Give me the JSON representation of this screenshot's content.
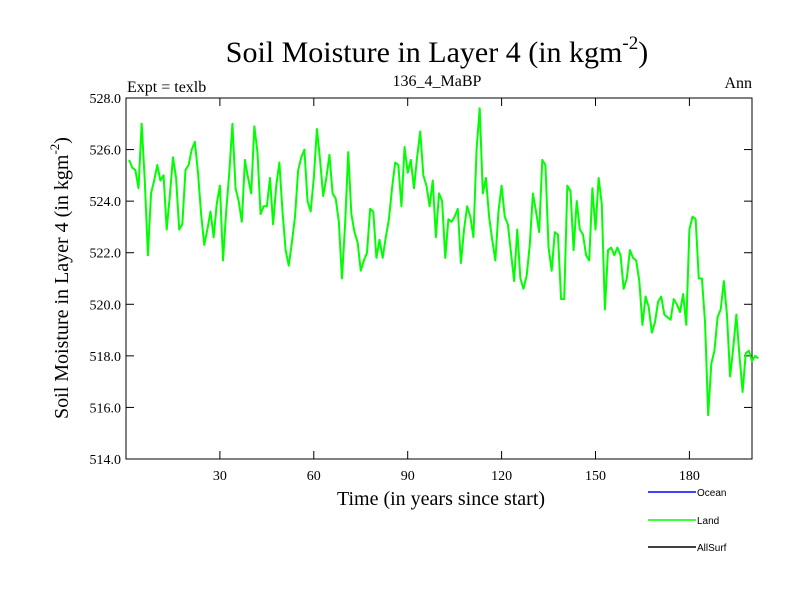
{
  "chart_data": {
    "type": "line",
    "title": "Soil Moisture in Layer 4 (in kgm",
    "title_sup": "-2",
    "title_close": ")",
    "subtitle_left": "Expt = texlb",
    "subtitle_center": "136_4_MaBP",
    "subtitle_right": "Ann",
    "xlabel": "Time (in years since start)",
    "ylabel": "Soil Moisture in Layer 4 (in kgm",
    "ylabel_sup": "-2",
    "ylabel_close": ")",
    "xlim": [
      0,
      200
    ],
    "ylim": [
      514.0,
      528.0
    ],
    "xticks": [
      30,
      60,
      90,
      120,
      150,
      180
    ],
    "xtick_labels": [
      "30",
      "60",
      "90",
      "120",
      "150",
      "180"
    ],
    "yticks": [
      514,
      516,
      518,
      520,
      522,
      524,
      526,
      528
    ],
    "ytick_labels": [
      "514.0",
      "516.0",
      "518.0",
      "520.0",
      "522.0",
      "524.0",
      "526.0",
      "528.0"
    ],
    "legend": [
      {
        "name": "Ocean",
        "color": "#0000ff"
      },
      {
        "name": "Land",
        "color": "#00ff00"
      },
      {
        "name": "AllSurf",
        "color": "#000000"
      }
    ],
    "series": [
      {
        "name": "Land",
        "color": "#00ff00",
        "x_start": 1,
        "values": [
          525.6,
          525.3,
          525.2,
          524.5,
          527.0,
          524.8,
          521.9,
          524.3,
          524.8,
          525.4,
          524.8,
          525.0,
          522.9,
          524.2,
          525.7,
          524.9,
          522.9,
          523.1,
          525.2,
          525.4,
          526.0,
          526.3,
          525.1,
          523.5,
          522.3,
          522.9,
          523.6,
          522.6,
          523.9,
          524.6,
          521.7,
          523.6,
          525.1,
          527.0,
          524.5,
          524.0,
          523.2,
          525.6,
          524.9,
          524.3,
          526.9,
          525.9,
          523.5,
          523.8,
          523.8,
          524.9,
          523.1,
          524.6,
          525.5,
          523.6,
          522.1,
          521.5,
          522.4,
          523.4,
          525.2,
          525.7,
          526.0,
          524.0,
          523.6,
          524.9,
          526.8,
          525.6,
          524.2,
          524.9,
          525.8,
          524.3,
          524.1,
          523.2,
          521.0,
          523.1,
          525.9,
          523.5,
          522.8,
          522.4,
          521.3,
          521.7,
          522.0,
          523.7,
          523.6,
          521.8,
          522.5,
          521.8,
          522.6,
          523.3,
          524.5,
          525.5,
          525.4,
          523.8,
          526.1,
          525.1,
          525.6,
          524.5,
          525.7,
          526.7,
          525.0,
          524.6,
          523.8,
          524.8,
          522.6,
          524.3,
          524.0,
          521.8,
          523.3,
          523.2,
          523.4,
          523.7,
          521.6,
          522.9,
          523.8,
          523.4,
          522.6,
          526.0,
          527.6,
          524.3,
          524.9,
          523.4,
          522.5,
          521.7,
          523.6,
          524.6,
          523.4,
          523.1,
          522.0,
          520.9,
          522.9,
          521.0,
          520.6,
          521.1,
          522.3,
          524.3,
          523.6,
          522.8,
          525.6,
          525.4,
          522.2,
          521.3,
          522.8,
          522.7,
          520.2,
          520.2,
          524.6,
          524.4,
          522.1,
          524.0,
          522.9,
          522.7,
          521.9,
          521.7,
          524.5,
          522.9,
          524.9,
          523.9,
          519.8,
          522.1,
          522.2,
          521.9,
          522.2,
          521.9,
          520.6,
          521.0,
          522.1,
          521.8,
          521.7,
          520.9,
          519.2,
          520.3,
          519.9,
          518.9,
          519.3,
          520.1,
          520.3,
          519.6,
          519.5,
          519.4,
          520.2,
          520.0,
          519.7,
          520.4,
          519.2,
          522.9,
          523.4,
          523.3,
          521.0,
          521.0,
          519.3,
          515.7,
          517.7,
          518.2,
          519.5,
          519.8,
          520.9,
          519.6,
          517.2,
          518.3,
          519.6,
          518.0,
          516.6,
          518.1,
          518.2,
          517.8,
          518.0,
          517.9
        ]
      }
    ]
  }
}
